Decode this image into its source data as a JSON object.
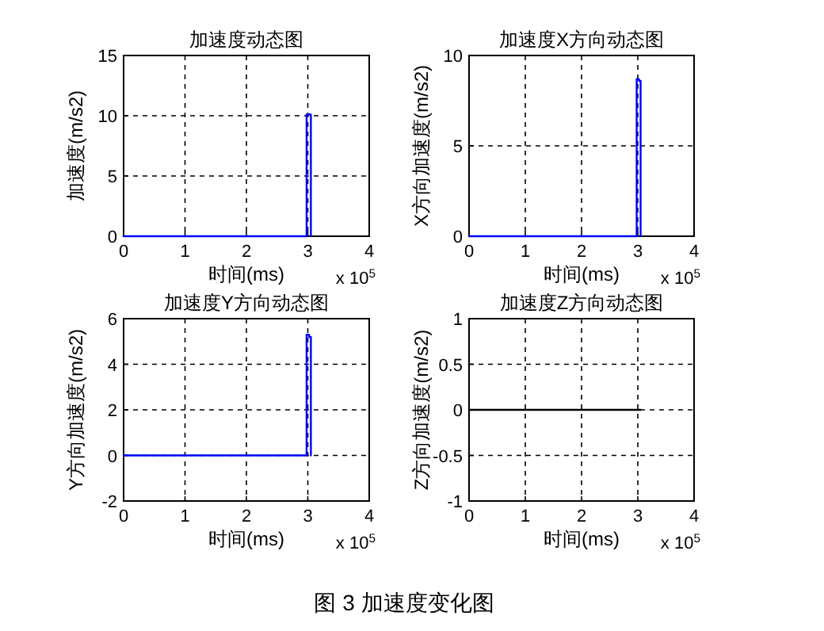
{
  "chart_data": [
    {
      "type": "line",
      "title": "加速度动态图",
      "xlabel": "时间(ms)",
      "ylabel": "加速度(m/s2)",
      "x": [
        0,
        2.98,
        2.98,
        3.05,
        3.05
      ],
      "series": [
        {
          "color": "#0000ff",
          "values": [
            0,
            0,
            10.1,
            10.1,
            0
          ]
        }
      ],
      "xlim": [
        0,
        4
      ],
      "ylim": [
        0,
        15
      ],
      "xticks": [
        0,
        1,
        2,
        3,
        4
      ],
      "yticks": [
        0,
        5,
        10,
        15
      ],
      "grid": true,
      "annotations": [
        "x 10$^{5}$"
      ]
    },
    {
      "type": "line",
      "title": "加速度X方向动态图",
      "xlabel": "时间(ms)",
      "ylabel": "X方向加速度(m/s2)",
      "x": [
        0,
        2.98,
        2.98,
        3.02,
        3.02,
        3.05,
        3.05
      ],
      "series": [
        {
          "color": "#0000ff",
          "values": [
            0,
            0,
            8.7,
            8.7,
            8.6,
            8.6,
            0
          ]
        }
      ],
      "xlim": [
        0,
        4
      ],
      "ylim": [
        0,
        10
      ],
      "xticks": [
        0,
        1,
        2,
        3,
        4
      ],
      "yticks": [
        0,
        5,
        10
      ],
      "grid": true,
      "annotations": [
        "x 10$^{5}$"
      ]
    },
    {
      "type": "line",
      "title": "加速度Y方向动态图",
      "xlabel": "时间(ms)",
      "ylabel": "Y方向加速度(m/s2)",
      "x": [
        0,
        2.98,
        2.98,
        3.02,
        3.02,
        3.05,
        3.05
      ],
      "series": [
        {
          "color": "#0000ff",
          "values": [
            0,
            0,
            5.3,
            5.3,
            5.2,
            5.2,
            0
          ]
        }
      ],
      "xlim": [
        0,
        4
      ],
      "ylim": [
        -2,
        6
      ],
      "xticks": [
        0,
        1,
        2,
        3,
        4
      ],
      "yticks": [
        -2,
        0,
        2,
        4,
        6
      ],
      "grid": true,
      "annotations": [
        "x 10$^{5}$"
      ]
    },
    {
      "type": "line",
      "title": "加速度Z方向动态图",
      "xlabel": "时间(ms)",
      "ylabel": "Z方向加速度(m/s2)",
      "x": [
        0,
        3.05
      ],
      "series": [
        {
          "color": "#000000",
          "values": [
            0,
            0
          ]
        }
      ],
      "xlim": [
        0,
        4
      ],
      "ylim": [
        -1,
        1
      ],
      "xticks": [
        0,
        1,
        2,
        3,
        4
      ],
      "yticks": [
        -1,
        -0.5,
        0,
        0.5,
        1
      ],
      "grid": true,
      "annotations": [
        "x 10$^{5}$",
        "图 3  加速度变化图"
      ]
    }
  ]
}
